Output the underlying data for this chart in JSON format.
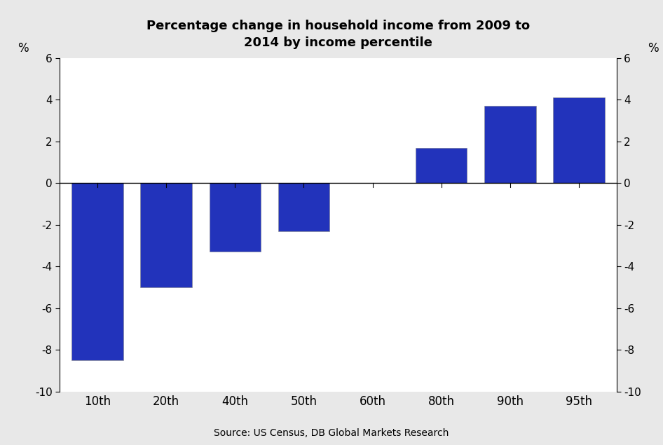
{
  "categories": [
    "10th",
    "20th",
    "40th",
    "50th",
    "60th",
    "80th",
    "90th",
    "95th"
  ],
  "values": [
    -8.5,
    -5.0,
    -3.3,
    -2.3,
    0.0,
    1.7,
    3.7,
    4.1
  ],
  "bar_color": "#2233BB",
  "title_line1": "Percentage change in household income from 2009 to",
  "title_line2": "2014 by income percentile",
  "ylabel_left": "%",
  "ylabel_right": "%",
  "ylim": [
    -10,
    6
  ],
  "yticks": [
    -10,
    -8,
    -6,
    -4,
    -2,
    0,
    2,
    4,
    6
  ],
  "source_text": "Source: US Census, DB Global Markets Research",
  "background_color": "#FFFFFF",
  "outer_background": "#E8E8E8",
  "bar_width": 0.75
}
